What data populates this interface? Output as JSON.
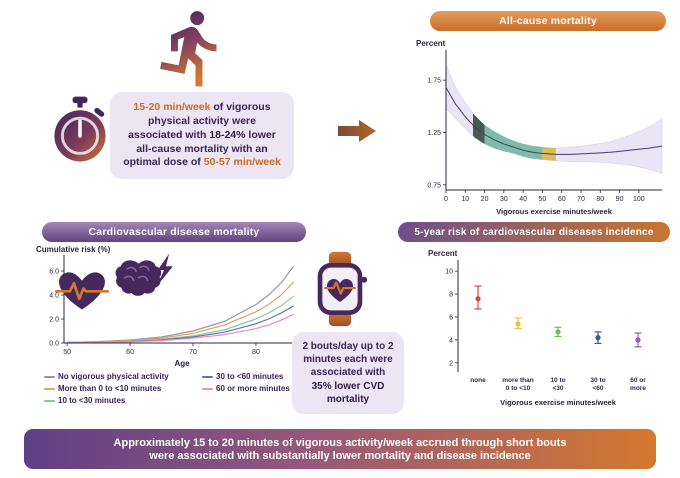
{
  "colors": {
    "purple_dark": "#46285c",
    "orange": "#d4782e",
    "callout_bg": "#ece6f4",
    "band_fill": "#e9e5f5",
    "highlight_dark_green": "#3d5246",
    "highlight_teal": "#79b9a0",
    "highlight_gold": "#dcb84f"
  },
  "icons": {
    "top_left": "runner-icon",
    "timer": "stopwatch-icon",
    "flow": "arrow-right-icon",
    "heart": "heart-ecg-icon",
    "brain": "brain-lightning-icon",
    "watch": "smartwatch-heart-icon"
  },
  "header_pills": {
    "all_cause": "All-cause mortality",
    "cvd_mortality": "Cardiovascular disease mortality",
    "five_year": "5-year risk of cardiovascular diseases incidence"
  },
  "callouts": {
    "main": {
      "seg1": "15-20 min/week",
      "seg2": " of vigorous physical activity were associated with ",
      "seg3": "18-24%",
      "seg4": " lower all-cause mortality with an optimal dose of ",
      "seg5": "50-57 min/week"
    },
    "bouts": {
      "seg1": "2 bouts/day up to 2 minutes each were associated with ",
      "seg2": "35% lower CVD mortality"
    }
  },
  "banner": {
    "line1": "Approximately 15 to 20 minutes of vigorous activity/week accrued through short bouts",
    "line2": "were associated with substantially lower mortality and disease incidence"
  },
  "chart_data": [
    {
      "id": "all_cause_mortality",
      "type": "line",
      "title": "All-cause mortality",
      "ylabel": "Percent",
      "xlabel": "Vigorous exercise minutes/week",
      "xlim": [
        0,
        112
      ],
      "ylim": [
        0.7,
        2.0
      ],
      "yticks": [
        0.75,
        1.25,
        1.75
      ],
      "xticks": [
        0,
        10,
        20,
        30,
        40,
        50,
        60,
        70,
        80,
        90,
        100
      ],
      "x": [
        0,
        5,
        10,
        15,
        20,
        25,
        30,
        35,
        40,
        45,
        50,
        57,
        65,
        75,
        85,
        95,
        105,
        112
      ],
      "y": [
        1.68,
        1.52,
        1.4,
        1.3,
        1.23,
        1.18,
        1.14,
        1.11,
        1.08,
        1.06,
        1.05,
        1.04,
        1.04,
        1.05,
        1.06,
        1.08,
        1.1,
        1.12
      ],
      "upper": [
        1.9,
        1.68,
        1.53,
        1.41,
        1.32,
        1.26,
        1.21,
        1.17,
        1.14,
        1.12,
        1.11,
        1.1,
        1.11,
        1.13,
        1.16,
        1.22,
        1.3,
        1.38
      ],
      "lower": [
        1.48,
        1.38,
        1.29,
        1.2,
        1.14,
        1.1,
        1.07,
        1.05,
        1.02,
        1.0,
        0.99,
        0.98,
        0.97,
        0.97,
        0.96,
        0.94,
        0.9,
        0.86
      ],
      "highlights": [
        {
          "x1": 14,
          "x2": 20,
          "color": "#3d5246",
          "meaning": "15-20 min/week"
        },
        {
          "x1": 20,
          "x2": 50,
          "color": "#79b9a0",
          "meaning": "beneficial range"
        },
        {
          "x1": 50,
          "x2": 57,
          "color": "#dcb84f",
          "meaning": "optimal dose 50-57 min/week"
        }
      ],
      "line_color": "#4a3a70"
    },
    {
      "id": "cvd_cumulative_risk",
      "type": "line",
      "title": "Cardiovascular disease mortality",
      "ylabel": "Cumulative risk (%)",
      "xlabel": "Age",
      "xlim": [
        49.5,
        87
      ],
      "ylim": [
        0,
        7
      ],
      "yticks": [
        0,
        2,
        4,
        6
      ],
      "ytick_labels": [
        "0.0",
        "2.0",
        "4.0",
        "6.0"
      ],
      "xticks": [
        50,
        60,
        70,
        80
      ],
      "ages": [
        50,
        55,
        60,
        65,
        70,
        75,
        80,
        82,
        84,
        86
      ],
      "series": [
        {
          "name": "No vigorous physical activity",
          "color": "#9b93a6",
          "values": [
            0.05,
            0.12,
            0.25,
            0.5,
            1.0,
            1.8,
            3.2,
            4.0,
            5.0,
            6.4
          ]
        },
        {
          "name": "More than 0 to <10 minutes",
          "color": "#d9a75f",
          "values": [
            0.04,
            0.1,
            0.2,
            0.4,
            0.8,
            1.5,
            2.6,
            3.2,
            4.0,
            5.1
          ]
        },
        {
          "name": "10 to <30 minutes",
          "color": "#85c79b",
          "values": [
            0.03,
            0.07,
            0.15,
            0.3,
            0.6,
            1.1,
            2.0,
            2.5,
            3.1,
            3.9
          ]
        },
        {
          "name": "30 to <60 minutes",
          "color": "#5b74b8",
          "values": [
            0.02,
            0.05,
            0.12,
            0.25,
            0.5,
            0.9,
            1.6,
            2.0,
            2.5,
            3.1
          ]
        },
        {
          "name": "60 or more minutes",
          "color": "#e891c0",
          "values": [
            0.02,
            0.04,
            0.1,
            0.2,
            0.4,
            0.7,
            1.2,
            1.5,
            1.9,
            2.4
          ]
        }
      ]
    },
    {
      "id": "five_year_risk",
      "type": "scatter",
      "title": "5-year risk of cardiovascular diseases incidence",
      "ylabel": "Percent",
      "xlabel": "Vigorous exercise minutes/week",
      "ylim": [
        1.2,
        10.8
      ],
      "yticks": [
        2,
        4,
        6,
        8,
        10
      ],
      "points": [
        {
          "label_lines": [
            "none"
          ],
          "value": 7.6,
          "lo": 6.7,
          "hi": 8.7,
          "color": "#d9453a"
        },
        {
          "label_lines": [
            "more than",
            "0 to <10"
          ],
          "value": 5.4,
          "lo": 5.0,
          "hi": 5.9,
          "color": "#e3c23c"
        },
        {
          "label_lines": [
            "10 to",
            "<30"
          ],
          "value": 4.7,
          "lo": 4.3,
          "hi": 5.1,
          "color": "#6fbf5f"
        },
        {
          "label_lines": [
            "30 to",
            "<60"
          ],
          "value": 4.2,
          "lo": 3.7,
          "hi": 4.7,
          "color": "#3a55a4"
        },
        {
          "label_lines": [
            "60 or",
            "more"
          ],
          "value": 4.0,
          "lo": 3.4,
          "hi": 4.6,
          "color": "#a855b8"
        }
      ]
    }
  ]
}
